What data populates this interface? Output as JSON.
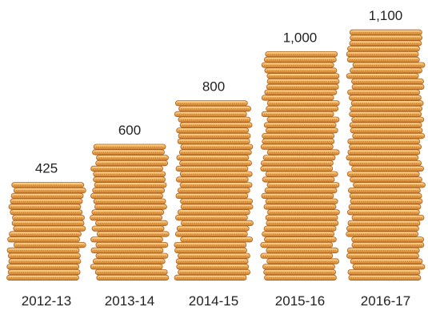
{
  "chart_data": {
    "type": "bar",
    "title": "",
    "xlabel": "",
    "ylabel": "",
    "categories": [
      "2012-13",
      "2013-14",
      "2014-15",
      "2015-16",
      "2016-17"
    ],
    "values": [
      425,
      600,
      800,
      1000,
      1100
    ],
    "value_labels": [
      "425",
      "600",
      "800",
      "1,000",
      "1,100"
    ],
    "ylim": [
      0,
      1100
    ],
    "grid": false,
    "legend": "none",
    "mark_style": "stacked-coins",
    "colors": {
      "coin_face": "#F0B25C",
      "coin_edge": "#C97A2C",
      "coin_rim": "#A85F1F",
      "coin_highlight": "#FFD48F",
      "text": "#222222"
    }
  }
}
